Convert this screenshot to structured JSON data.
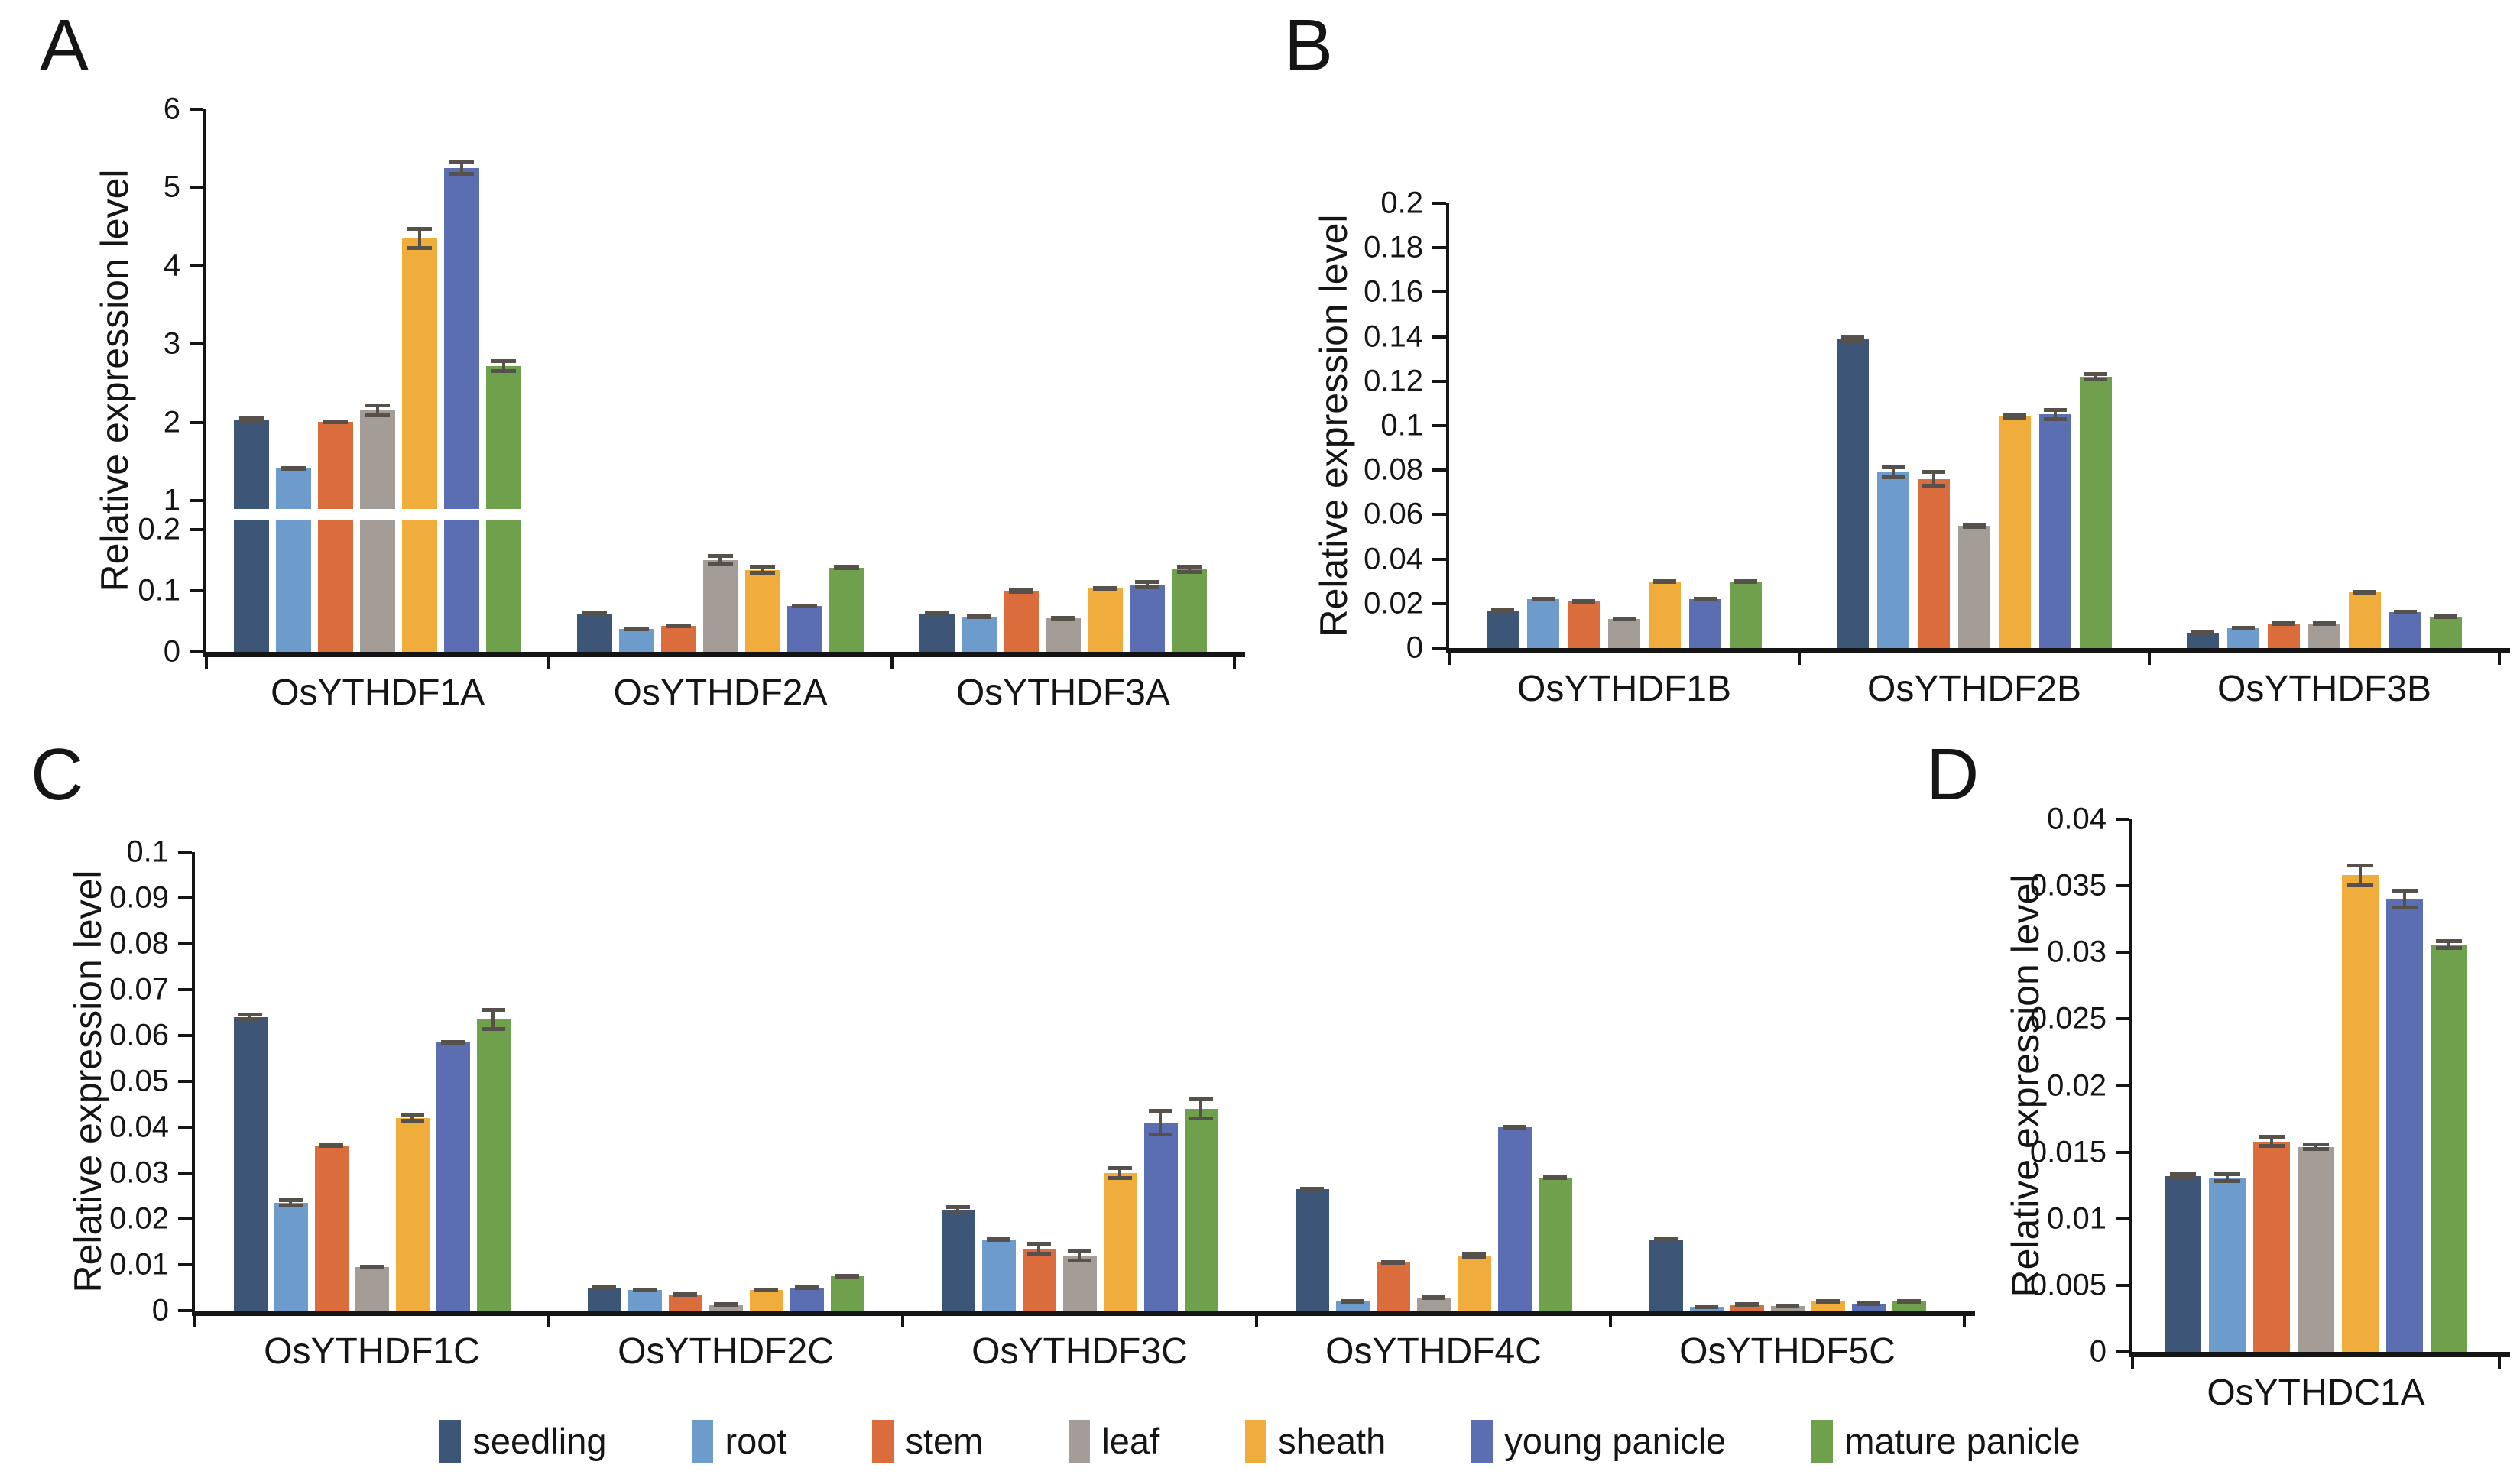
{
  "figure": {
    "kind": "multi-panel bar figure",
    "background": "#ffffff"
  },
  "colors": {
    "seedling": "#3D5677",
    "root": "#6D9CCC",
    "stem": "#DB6C3B",
    "leaf": "#A49D97",
    "sheath": "#F0AD3C",
    "young_panicle": "#5B6EB1",
    "mature_panicle": "#6FA04B",
    "error_bar": "#56524B",
    "axis": "#151515"
  },
  "legend": {
    "position": "bottom-center",
    "items": [
      {
        "label": "seedling",
        "color": "#3D5677"
      },
      {
        "label": "root",
        "color": "#6D9CCC"
      },
      {
        "label": "stem",
        "color": "#DB6C3B"
      },
      {
        "label": "leaf",
        "color": "#A49D97"
      },
      {
        "label": "sheath",
        "color": "#F0AD3C"
      },
      {
        "label": "young panicle",
        "color": "#5B6EB1"
      },
      {
        "label": "mature panicle",
        "color": "#6FA04B"
      }
    ]
  },
  "chart_data": [
    {
      "panel_label": "A",
      "type": "bar",
      "title": "",
      "xlabel": "",
      "ylabel": "Relative expression level",
      "grid": false,
      "categories": [
        "OsYTHDF1A",
        "OsYTHDF2A",
        "OsYTHDF3A"
      ],
      "axis": {
        "broken": true,
        "segments": [
          {
            "min": 0,
            "max": 0.2,
            "ticks": [
              "0",
              "0.1",
              "0.2"
            ]
          },
          {
            "min": 1,
            "max": 6,
            "ticks": [
              "1",
              "2",
              "3",
              "4",
              "5",
              "6"
            ]
          }
        ]
      },
      "series": [
        {
          "name": "seedling",
          "color": "#3D5677",
          "values": [
            2.03,
            0.062,
            0.063
          ],
          "errors": [
            0.04,
            0.003,
            0.003
          ]
        },
        {
          "name": "root",
          "color": "#6D9CCC",
          "values": [
            1.41,
            0.038,
            0.058
          ],
          "errors": [
            0.02,
            0.002,
            0.003
          ]
        },
        {
          "name": "stem",
          "color": "#DB6C3B",
          "values": [
            2.01,
            0.043,
            0.1
          ],
          "errors": [
            0.02,
            0.002,
            0.005
          ]
        },
        {
          "name": "leaf",
          "color": "#A49D97",
          "values": [
            2.15,
            0.15,
            0.055
          ],
          "errors": [
            0.09,
            0.01,
            0.003
          ]
        },
        {
          "name": "sheath",
          "color": "#F0AD3C",
          "values": [
            4.35,
            0.134,
            0.104
          ],
          "errors": [
            0.15,
            0.008,
            0.004
          ]
        },
        {
          "name": "young panicle",
          "color": "#5B6EB1",
          "values": [
            5.25,
            0.075,
            0.11
          ],
          "errors": [
            0.1,
            0.004,
            0.007
          ]
        },
        {
          "name": "mature panicle",
          "color": "#6FA04B",
          "values": [
            2.72,
            0.138,
            0.135
          ],
          "errors": [
            0.09,
            0.004,
            0.008
          ]
        }
      ]
    },
    {
      "panel_label": "B",
      "type": "bar",
      "title": "",
      "xlabel": "",
      "ylabel": "Relative expression level",
      "grid": false,
      "categories": [
        "OsYTHDF1B",
        "OsYTHDF2B",
        "OsYTHDF3B"
      ],
      "axis": {
        "broken": false,
        "min": 0,
        "max": 0.2,
        "ticks": [
          "0",
          "0.02",
          "0.04",
          "0.06",
          "0.08",
          "0.1",
          "0.12",
          "0.14",
          "0.16",
          "0.18",
          "0.2"
        ]
      },
      "series": [
        {
          "name": "seedling",
          "color": "#3D5677",
          "values": [
            0.017,
            0.139,
            0.007
          ],
          "errors": [
            0.0005,
            0.002,
            0.0004
          ]
        },
        {
          "name": "root",
          "color": "#6D9CCC",
          "values": [
            0.022,
            0.079,
            0.009
          ],
          "errors": [
            0.001,
            0.003,
            0.0004
          ]
        },
        {
          "name": "stem",
          "color": "#DB6C3B",
          "values": [
            0.021,
            0.076,
            0.011
          ],
          "errors": [
            0.001,
            0.004,
            0.0006
          ]
        },
        {
          "name": "leaf",
          "color": "#A49D97",
          "values": [
            0.013,
            0.055,
            0.011
          ],
          "errors": [
            0.0004,
            0.0015,
            0.0006
          ]
        },
        {
          "name": "sheath",
          "color": "#F0AD3C",
          "values": [
            0.03,
            0.104,
            0.025
          ],
          "errors": [
            0.0006,
            0.0015,
            0.001
          ]
        },
        {
          "name": "young panicle",
          "color": "#5B6EB1",
          "values": [
            0.022,
            0.105,
            0.016
          ],
          "errors": [
            0.0005,
            0.003,
            0.0006
          ]
        },
        {
          "name": "mature panicle",
          "color": "#6FA04B",
          "values": [
            0.03,
            0.122,
            0.014
          ],
          "errors": [
            0.001,
            0.002,
            0.0008
          ]
        }
      ]
    },
    {
      "panel_label": "C",
      "type": "bar",
      "title": "",
      "xlabel": "",
      "ylabel": "Relative expression level",
      "grid": false,
      "categories": [
        "OsYTHDF1C",
        "OsYTHDF2C",
        "OsYTHDF3C",
        "OsYTHDF4C",
        "OsYTHDF5C"
      ],
      "axis": {
        "broken": false,
        "min": 0,
        "max": 0.1,
        "ticks": [
          "0",
          "0.01",
          "0.02",
          "0.03",
          "0.04",
          "0.05",
          "0.06",
          "0.07",
          "0.08",
          "0.09",
          "0.1"
        ]
      },
      "series": [
        {
          "name": "seedling",
          "color": "#3D5677",
          "values": [
            0.064,
            0.005,
            0.022,
            0.0265,
            0.0155
          ],
          "errors": [
            0.001,
            0.0005,
            0.001,
            0.0004,
            0.0004
          ]
        },
        {
          "name": "root",
          "color": "#6D9CCC",
          "values": [
            0.0235,
            0.0045,
            0.0155,
            0.002,
            0.0008
          ],
          "errors": [
            0.001,
            0.0003,
            0.0005,
            0.0002,
            0.0001
          ]
        },
        {
          "name": "stem",
          "color": "#DB6C3B",
          "values": [
            0.036,
            0.0035,
            0.0135,
            0.0105,
            0.0013
          ],
          "errors": [
            0.0004,
            0.0003,
            0.0015,
            0.0004,
            0.0002
          ]
        },
        {
          "name": "leaf",
          "color": "#A49D97",
          "values": [
            0.0095,
            0.0014,
            0.012,
            0.0028,
            0.001
          ],
          "errors": [
            0.0004,
            0.0002,
            0.0015,
            0.0004,
            0.0002
          ]
        },
        {
          "name": "sheath",
          "color": "#F0AD3C",
          "values": [
            0.042,
            0.0045,
            0.03,
            0.012,
            0.002
          ],
          "errors": [
            0.001,
            0.0003,
            0.0015,
            0.0008,
            0.0002
          ]
        },
        {
          "name": "young panicle",
          "color": "#5B6EB1",
          "values": [
            0.0585,
            0.005,
            0.041,
            0.04,
            0.0015
          ],
          "errors": [
            0.0005,
            0.0003,
            0.003,
            0.0005,
            0.0002
          ]
        },
        {
          "name": "mature panicle",
          "color": "#6FA04B",
          "values": [
            0.0635,
            0.0075,
            0.044,
            0.029,
            0.002
          ],
          "errors": [
            0.0025,
            0.0005,
            0.0025,
            0.0005,
            0.0003
          ]
        }
      ]
    },
    {
      "panel_label": "D",
      "type": "bar",
      "title": "",
      "xlabel": "",
      "ylabel": "Relative expression level",
      "grid": false,
      "categories": [
        "OsYTHDC1A"
      ],
      "axis": {
        "broken": false,
        "min": 0,
        "max": 0.04,
        "ticks": [
          "0",
          "0.005",
          "0.01",
          "0.015",
          "0.02",
          "0.025",
          "0.03",
          "0.035",
          "0.04"
        ]
      },
      "series": [
        {
          "name": "seedling",
          "color": "#3D5677",
          "values": [
            0.0132
          ],
          "errors": [
            0.0003
          ]
        },
        {
          "name": "root",
          "color": "#6D9CCC",
          "values": [
            0.0131
          ],
          "errors": [
            0.0004
          ]
        },
        {
          "name": "stem",
          "color": "#DB6C3B",
          "values": [
            0.0158
          ],
          "errors": [
            0.0005
          ]
        },
        {
          "name": "leaf",
          "color": "#A49D97",
          "values": [
            0.0154
          ],
          "errors": [
            0.0003
          ]
        },
        {
          "name": "sheath",
          "color": "#F0AD3C",
          "values": [
            0.0358
          ],
          "errors": [
            0.0009
          ]
        },
        {
          "name": "young panicle",
          "color": "#5B6EB1",
          "values": [
            0.034
          ],
          "errors": [
            0.0008
          ]
        },
        {
          "name": "mature panicle",
          "color": "#6FA04B",
          "values": [
            0.0306
          ],
          "errors": [
            0.0004
          ]
        }
      ]
    }
  ]
}
